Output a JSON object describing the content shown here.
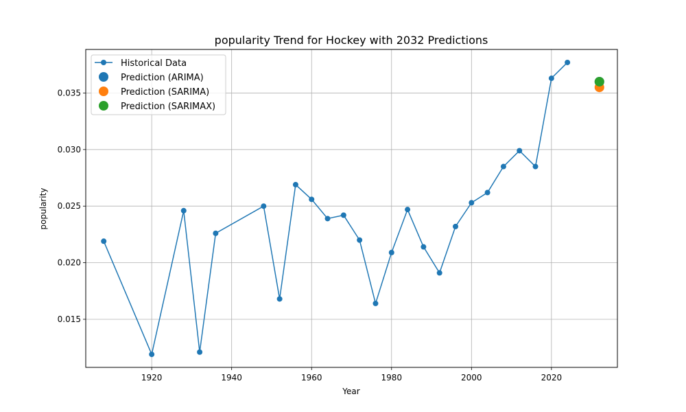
{
  "chart_data": {
    "type": "line",
    "title": "popularity Trend for Hockey with 2032 Predictions",
    "xlabel": "Year",
    "ylabel": "popularity",
    "xlim": [
      1903.5,
      2036.5
    ],
    "ylim": [
      0.01075,
      0.03885
    ],
    "x_ticks": [
      1920,
      1940,
      1960,
      1980,
      2000,
      2020
    ],
    "y_ticks": [
      0.015,
      0.02,
      0.025,
      0.03,
      0.035
    ],
    "x_tick_labels": [
      "1920",
      "1940",
      "1960",
      "1980",
      "2000",
      "2020"
    ],
    "y_tick_labels": [
      "0.015",
      "0.020",
      "0.025",
      "0.030",
      "0.035"
    ],
    "grid": true,
    "legend_position": "top-left",
    "series": [
      {
        "name": "Historical Data",
        "kind": "line",
        "color": "#1f77b4",
        "x": [
          1908,
          1920,
          1928,
          1932,
          1936,
          1948,
          1952,
          1956,
          1960,
          1964,
          1968,
          1972,
          1976,
          1980,
          1984,
          1988,
          1992,
          1996,
          2000,
          2004,
          2008,
          2012,
          2016,
          2020,
          2024
        ],
        "y": [
          0.0219,
          0.0119,
          0.0246,
          0.0121,
          0.0226,
          0.025,
          0.0168,
          0.0269,
          0.0256,
          0.0239,
          0.0242,
          0.022,
          0.0164,
          0.0209,
          0.0247,
          0.0214,
          0.0191,
          0.0232,
          0.0253,
          0.0262,
          0.0285,
          0.0299,
          0.0285,
          0.0363,
          0.0377
        ]
      },
      {
        "name": "Prediction (ARIMA)",
        "kind": "point",
        "color": "#1f77b4",
        "x": [
          2032
        ],
        "y": [
          0.036
        ]
      },
      {
        "name": "Prediction (SARIMA)",
        "kind": "point",
        "color": "#ff7f0e",
        "x": [
          2032
        ],
        "y": [
          0.0355
        ]
      },
      {
        "name": "Prediction (SARIMAX)",
        "kind": "point",
        "color": "#2ca02c",
        "x": [
          2032
        ],
        "y": [
          0.036
        ]
      }
    ]
  }
}
